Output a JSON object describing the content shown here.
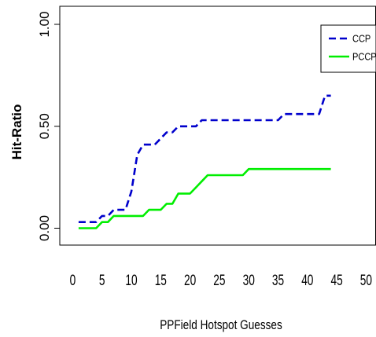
{
  "chart_data": {
    "type": "line",
    "xlabel": "PPField Hotspot Guesses",
    "ylabel": "Hit-Ratio",
    "xlim": [
      0,
      50
    ],
    "ylim": [
      0,
      1
    ],
    "x_ticks": [
      0,
      5,
      10,
      15,
      20,
      25,
      30,
      35,
      40,
      45,
      50
    ],
    "y_ticks": [
      0,
      0.5,
      1
    ],
    "y_tick_labels": [
      "0.00",
      "0.50",
      "1.00"
    ],
    "legend": {
      "position": "top-right"
    },
    "series": [
      {
        "name": "CCP",
        "color": "#0000cc",
        "dash": "dashed",
        "x": [
          1,
          2,
          3,
          4,
          5,
          6,
          7,
          8,
          9,
          10,
          11,
          12,
          13,
          14,
          15,
          16,
          17,
          18,
          19,
          20,
          21,
          22,
          23,
          24,
          25,
          26,
          27,
          28,
          29,
          30,
          31,
          32,
          33,
          34,
          35,
          36,
          37,
          38,
          39,
          40,
          41,
          42,
          43,
          44
        ],
        "y": [
          0.03,
          0.03,
          0.03,
          0.03,
          0.06,
          0.06,
          0.09,
          0.09,
          0.09,
          0.18,
          0.36,
          0.41,
          0.41,
          0.41,
          0.44,
          0.47,
          0.47,
          0.5,
          0.5,
          0.5,
          0.5,
          0.53,
          0.53,
          0.53,
          0.53,
          0.53,
          0.53,
          0.53,
          0.53,
          0.53,
          0.53,
          0.53,
          0.53,
          0.53,
          0.53,
          0.56,
          0.56,
          0.56,
          0.56,
          0.56,
          0.56,
          0.56,
          0.65,
          0.65
        ]
      },
      {
        "name": "PCCP",
        "color": "#00ee00",
        "dash": "solid",
        "x": [
          1,
          2,
          3,
          4,
          5,
          6,
          7,
          8,
          9,
          10,
          11,
          12,
          13,
          14,
          15,
          16,
          17,
          18,
          19,
          20,
          21,
          22,
          23,
          24,
          25,
          26,
          27,
          28,
          29,
          30,
          31,
          32,
          33,
          34,
          35,
          36,
          37,
          38,
          39,
          40,
          41,
          42,
          43,
          44
        ],
        "y": [
          0,
          0,
          0,
          0,
          0.03,
          0.03,
          0.06,
          0.06,
          0.06,
          0.06,
          0.06,
          0.06,
          0.09,
          0.09,
          0.09,
          0.12,
          0.12,
          0.17,
          0.17,
          0.17,
          0.2,
          0.23,
          0.26,
          0.26,
          0.26,
          0.26,
          0.26,
          0.26,
          0.26,
          0.29,
          0.29,
          0.29,
          0.29,
          0.29,
          0.29,
          0.29,
          0.29,
          0.29,
          0.29,
          0.29,
          0.29,
          0.29,
          0.29,
          0.29
        ]
      }
    ]
  }
}
